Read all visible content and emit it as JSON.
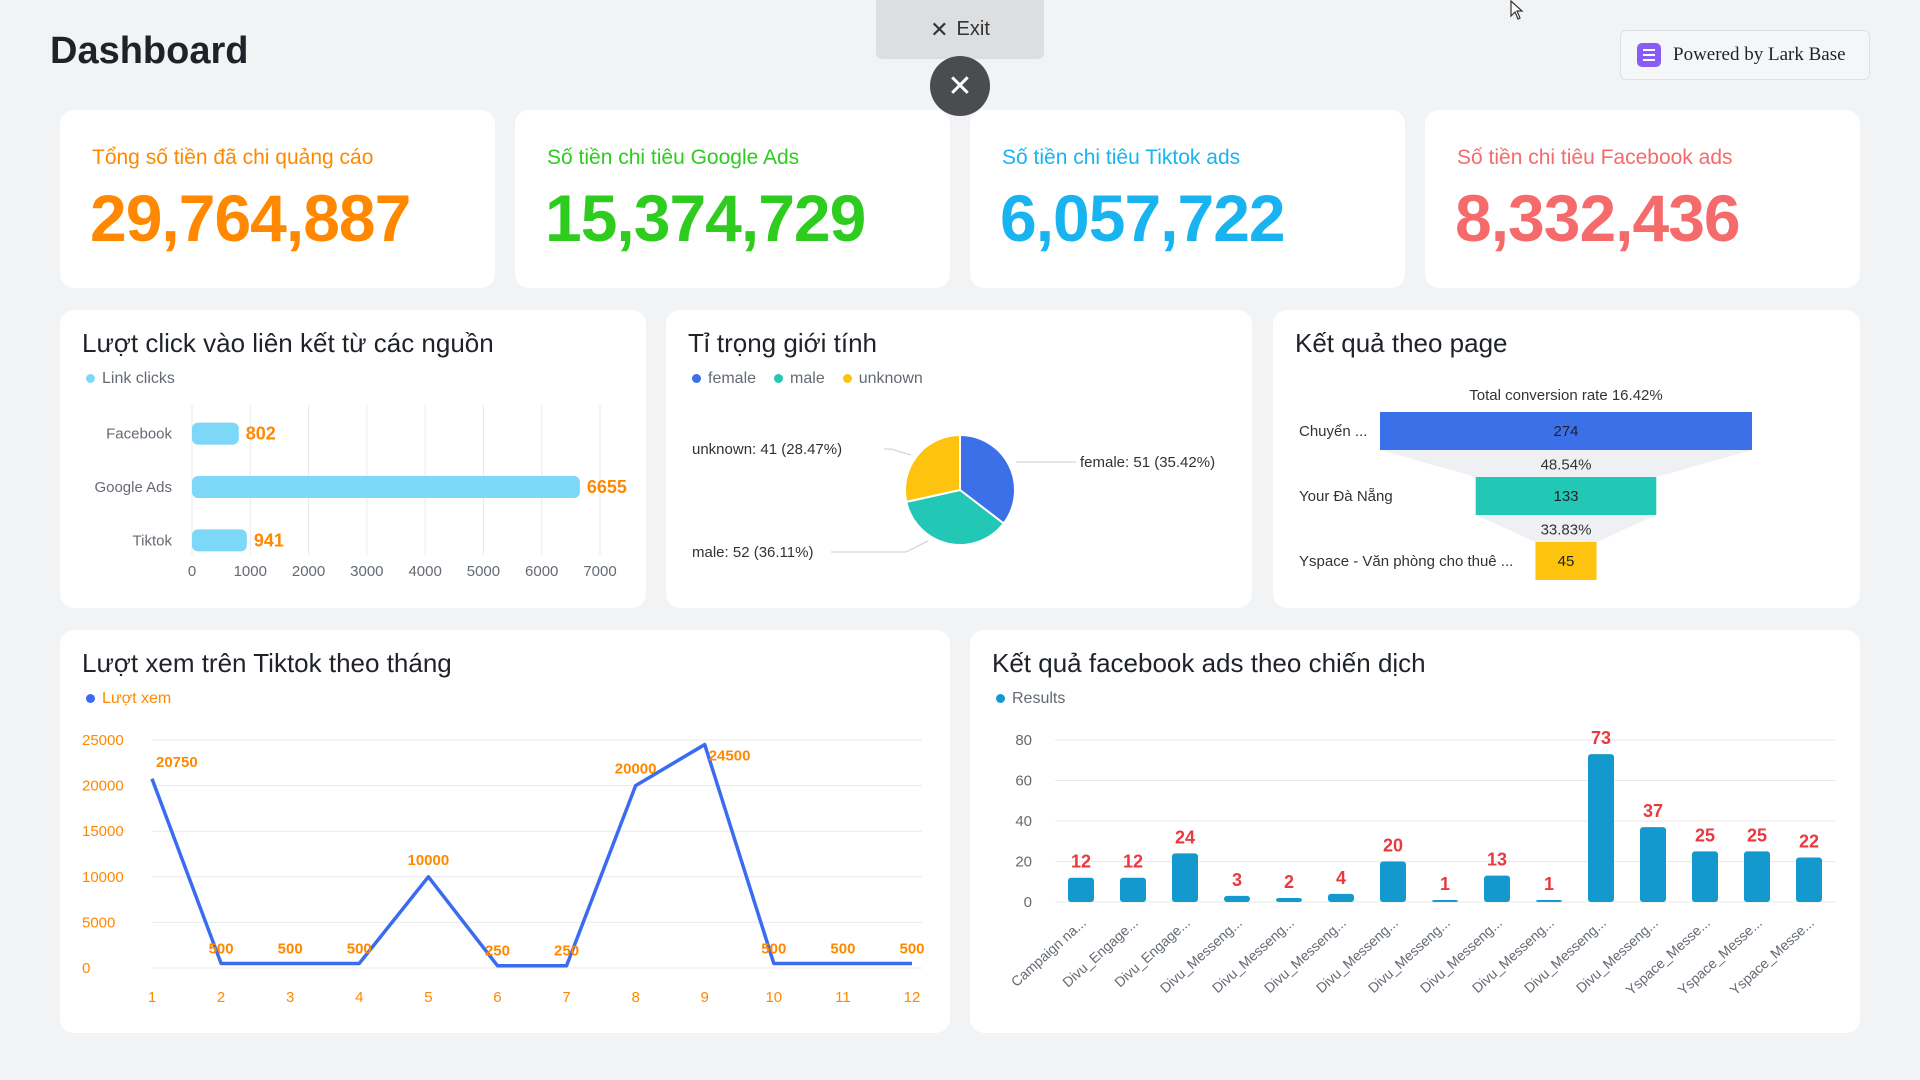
{
  "header": {
    "title": "Dashboard",
    "exit_label": "Exit",
    "powered_by": "Powered by Lark Base"
  },
  "kpis": [
    {
      "label": "Tổng số tiền đã chi quảng cáo",
      "value": "29,764,887",
      "color": "#ff8800"
    },
    {
      "label": "Số tiền chi tiêu Google Ads",
      "value": "15,374,729",
      "color": "#2ecc1f"
    },
    {
      "label": "Số tiền chi tiêu Tiktok ads",
      "value": "6,057,722",
      "color": "#19b4f0"
    },
    {
      "label": "Số tiền chi tiêu Facebook ads",
      "value": "8,332,436",
      "color": "#f56b6b"
    }
  ],
  "chart_data": [
    {
      "type": "bar",
      "orientation": "horizontal",
      "title": "Lượt click vào liên kết từ các nguồn",
      "legend": [
        "Link clicks"
      ],
      "categories": [
        "Facebook",
        "Google Ads",
        "Tiktok"
      ],
      "values": [
        802,
        6655,
        941
      ],
      "xlim": [
        0,
        7000
      ],
      "ticks": [
        0,
        1000,
        2000,
        3000,
        4000,
        5000,
        6000,
        7000
      ],
      "color": "#7dd8f7",
      "label_color": "#ff8800"
    },
    {
      "type": "pie",
      "title": "Tỉ trọng giới tính",
      "legend": [
        "female",
        "male",
        "unknown"
      ],
      "slices": [
        {
          "name": "female",
          "value": 51,
          "percent": "35.42%",
          "color": "#3b70e8"
        },
        {
          "name": "male",
          "value": 52,
          "percent": "36.11%",
          "color": "#22c7b6"
        },
        {
          "name": "unknown",
          "value": 41,
          "percent": "28.47%",
          "color": "#fdc30e"
        }
      ],
      "labels": [
        "female: 51 (35.42%)",
        "male: 52 (36.11%)",
        "unknown: 41 (28.47%)"
      ]
    },
    {
      "type": "funnel",
      "title": "Kết quả theo page",
      "total_label": "Total conversion rate 16.42%",
      "stages": [
        {
          "name": "Chuyển ...",
          "value": 274,
          "color": "#3b70e8"
        },
        {
          "name": "Your Đà Nẵng",
          "value": 133,
          "color": "#22c7b6"
        },
        {
          "name": "Yspace - Văn phòng cho thuê ...",
          "value": 45,
          "color": "#fdc30e"
        }
      ],
      "rates": [
        "48.54%",
        "33.83%"
      ]
    },
    {
      "type": "line",
      "title": "Lượt xem trên Tiktok theo tháng",
      "legend": [
        "Lượt xem"
      ],
      "x": [
        1,
        2,
        3,
        4,
        5,
        6,
        7,
        8,
        9,
        10,
        11,
        12
      ],
      "values": [
        20750,
        500,
        500,
        500,
        10000,
        250,
        250,
        20000,
        24500,
        500,
        500,
        500
      ],
      "ylim": [
        0,
        25000
      ],
      "yticks": [
        0,
        5000,
        10000,
        15000,
        20000,
        25000
      ],
      "color": "#3b6cf0",
      "label_color": "#ff8800"
    },
    {
      "type": "bar",
      "title": "Kết quả facebook ads theo chiến dịch",
      "legend": [
        "Results"
      ],
      "categories": [
        "Campaign na...",
        "Divu_Engage...",
        "Divu_Engage...",
        "Divu_Messeng...",
        "Divu_Messeng...",
        "Divu_Messeng...",
        "Divu_Messeng...",
        "Divu_Messeng...",
        "Divu_Messeng...",
        "Divu_Messeng...",
        "Divu_Messeng...",
        "Divu_Messeng...",
        "Yspace_Messe...",
        "Yspace_Messe...",
        "Yspace_Messe..."
      ],
      "values": [
        12,
        12,
        24,
        3,
        2,
        4,
        20,
        1,
        13,
        1,
        73,
        37,
        25,
        25,
        22
      ],
      "ylim": [
        0,
        80
      ],
      "yticks": [
        0,
        20,
        40,
        60,
        80
      ],
      "color": "#1499cf",
      "label_color": "#e8393f"
    }
  ]
}
